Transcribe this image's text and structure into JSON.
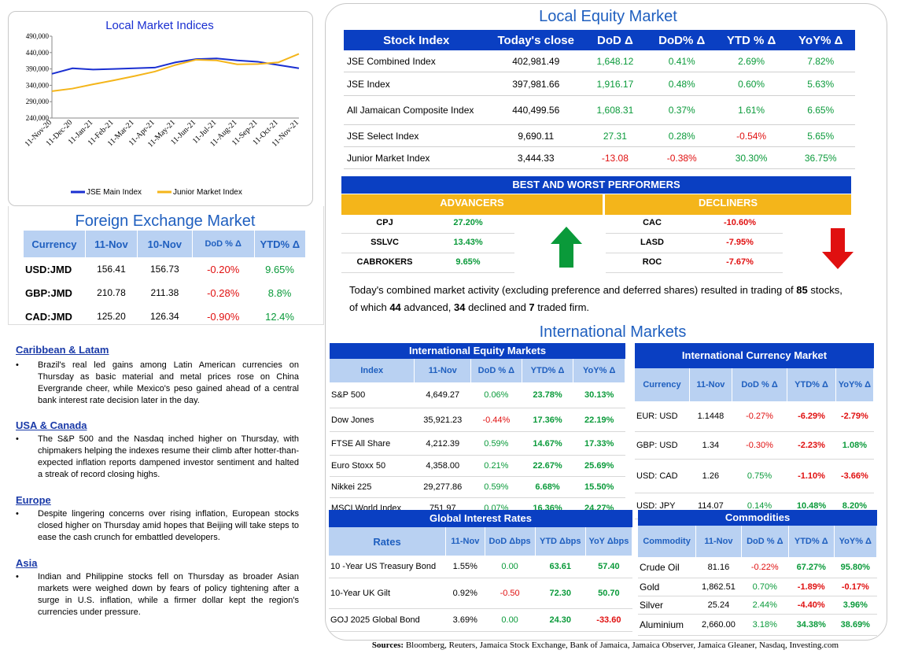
{
  "local_indices_chart": {
    "title": "Local Market Indices",
    "chart_data": {
      "type": "line",
      "title": "Local Market Indices",
      "x": [
        "11-Nov-20",
        "11-Dec-20",
        "11-Jan-21",
        "11-Feb-21",
        "11-Mar-21",
        "11-Apr-21",
        "11-May-21",
        "11-Jun-21",
        "11-Jul-21",
        "11-Aug-21",
        "11-Sep-21",
        "11-Oct-21",
        "11-Nov-21"
      ],
      "yticks": [
        "490,000",
        "440,000",
        "390,000",
        "340,000",
        "290,000",
        "240,000"
      ],
      "ylim": [
        240000,
        490000
      ],
      "series": [
        {
          "name": "JSE Main Index",
          "color": "#1a2fd1",
          "values": [
            375000,
            392000,
            388000,
            390000,
            392000,
            394000,
            410000,
            420000,
            422000,
            416000,
            412000,
            402000,
            392000
          ]
        },
        {
          "name": "Junior Market Index",
          "color": "#f4b51a",
          "values": [
            322000,
            330000,
            343000,
            355000,
            368000,
            382000,
            402000,
            418000,
            416000,
            404000,
            405000,
            410000,
            436000
          ]
        }
      ],
      "legend": "bottom"
    }
  },
  "fx": {
    "title": "Foreign Exchange Market",
    "headers": [
      "Currency",
      "11-Nov",
      "10-Nov",
      "DoD % Δ",
      "YTD% Δ"
    ],
    "rows": [
      {
        "cur": "USD:JMD",
        "a": "156.41",
        "b": "156.73",
        "dod": "-0.20%",
        "ytd": "9.65%"
      },
      {
        "cur": "GBP:JMD",
        "a": "210.78",
        "b": "211.38",
        "dod": "-0.28%",
        "ytd": "8.8%"
      },
      {
        "cur": "CAD:JMD",
        "a": "125.20",
        "b": "126.34",
        "dod": "-0.90%",
        "ytd": "12.4%"
      }
    ]
  },
  "news": [
    {
      "heading": "Caribbean & Latam",
      "body": "Brazil's real led gains among Latin American currencies on Thursday as basic material and metal prices rose on China Evergrande cheer, while Mexico's peso gained ahead of a central bank interest rate decision later in the day."
    },
    {
      "heading": "USA & Canada",
      "body": "The S&P 500 and the Nasdaq inched higher on Thursday, with chipmakers helping the indexes resume their climb after hotter-than-expected inflation reports dampened investor sentiment and halted a streak of record closing highs."
    },
    {
      "heading": "Europe",
      "body": "Despite lingering concerns over rising inflation, European stocks closed higher on Thursday amid hopes that Beijing will take steps to ease the cash crunch for embattled developers."
    },
    {
      "heading": "Asia",
      "body": "Indian and Philippine stocks fell on Thursday as broader Asian markets were weighed down by fears of policy tightening after a surge in U.S. inflation, while a firmer dollar kept the region's currencies under pressure."
    }
  ],
  "equity": {
    "title": "Local Equity Market",
    "headers": [
      "Stock Index",
      "Today's close",
      "DoD  Δ",
      "DoD% Δ",
      "YTD % Δ",
      "YoY% Δ"
    ],
    "rows": [
      {
        "name": "JSE Combined Index",
        "close": "402,981.49",
        "dod": "1,648.12",
        "dodp": "0.41%",
        "ytd": "2.69%",
        "yoy": "7.82%"
      },
      {
        "name": "JSE Index",
        "close": "397,981.66",
        "dod": "1,916.17",
        "dodp": "0.48%",
        "ytd": "0.60%",
        "yoy": "5.63%"
      },
      {
        "name": "All Jamaican Composite Index",
        "close": "440,499.56",
        "dod": "1,608.31",
        "dodp": "0.37%",
        "ytd": "1.61%",
        "yoy": "6.65%"
      },
      {
        "name": "JSE Select Index",
        "close": "9,690.11",
        "dod": "27.31",
        "dodp": "0.28%",
        "ytd": "-0.54%",
        "yoy": "5.65%"
      },
      {
        "name": "Junior Market Index",
        "close": "3,444.33",
        "dod": "-13.08",
        "dodp": "-0.38%",
        "ytd": "30.30%",
        "yoy": "36.75%"
      }
    ]
  },
  "performers": {
    "title": "BEST AND WORST PERFORMERS",
    "advancers_label": "ADVANCERS",
    "decliners_label": "DECLINERS",
    "advancers": [
      {
        "sym": "CPJ",
        "chg": "27.20%"
      },
      {
        "sym": "SSLVC",
        "chg": "13.43%"
      },
      {
        "sym": "CABROKERS",
        "chg": "9.65%"
      }
    ],
    "decliners": [
      {
        "sym": "CAC",
        "chg": "-10.60%"
      },
      {
        "sym": "LASD",
        "chg": "-7.95%"
      },
      {
        "sym": "ROC",
        "chg": "-7.67%"
      }
    ]
  },
  "summary": {
    "p1": "Today's combined market activity (excluding preference and deferred shares) resulted in trading of ",
    "traded": "85",
    "p2": " stocks, of which ",
    "advanced": "44",
    "p3": " advanced, ",
    "declined": "34",
    "p4": " declined and ",
    "firm": "7",
    "p5": " traded firm."
  },
  "intl": {
    "title": "International Markets",
    "equity": {
      "title": "International Equity Markets",
      "headers": [
        "Index",
        "11-Nov",
        "DoD % Δ",
        "YTD% Δ",
        "YoY% Δ"
      ],
      "rows": [
        {
          "name": "S&P 500",
          "v": "4,649.27",
          "dod": "0.06%",
          "ytd": "23.78%",
          "yoy": "30.13%"
        },
        {
          "name": "Dow Jones",
          "v": "35,921.23",
          "dod": "-0.44%",
          "ytd": "17.36%",
          "yoy": "22.19%"
        },
        {
          "name": "FTSE All Share",
          "v": "4,212.39",
          "dod": "0.59%",
          "ytd": "14.67%",
          "yoy": "17.33%"
        },
        {
          "name": "Euro Stoxx 50",
          "v": "4,358.00",
          "dod": "0.21%",
          "ytd": "22.67%",
          "yoy": "25.69%"
        },
        {
          "name": "Nikkei 225",
          "v": "29,277.86",
          "dod": "0.59%",
          "ytd": "6.68%",
          "yoy": "15.50%"
        },
        {
          "name": "MSCI World Index",
          "v": "751.97",
          "dod": "0.07%",
          "ytd": "16.36%",
          "yoy": "24.27%"
        }
      ]
    },
    "currency": {
      "title": "International Currency Market",
      "headers": [
        "Currency",
        "11-Nov",
        "DoD % Δ",
        "YTD% Δ",
        "YoY% Δ"
      ],
      "rows": [
        {
          "name": "EUR: USD",
          "v": "1.1448",
          "dod": "-0.27%",
          "ytd": "-6.29%",
          "yoy": "-2.79%"
        },
        {
          "name": "GBP: USD",
          "v": "1.34",
          "dod": "-0.30%",
          "ytd": "-2.23%",
          "yoy": "1.08%"
        },
        {
          "name": "USD: CAD",
          "v": "1.26",
          "dod": "0.75%",
          "ytd": "-1.10%",
          "yoy": "-3.66%"
        },
        {
          "name": "USD: JPY",
          "v": "114.07",
          "dod": "0.14%",
          "ytd": "10.48%",
          "yoy": "8.20%"
        }
      ]
    },
    "rates": {
      "title": "Global Interest Rates",
      "headers": [
        "Rates",
        "11-Nov",
        "DoD Δbps",
        "YTD Δbps",
        "YoY Δbps"
      ],
      "rows": [
        {
          "name": "10 -Year US Treasury Bond",
          "v": "1.55%",
          "dod": "0.00",
          "ytd": "63.61",
          "yoy": "57.40"
        },
        {
          "name": "10-Year UK Gilt",
          "v": "0.92%",
          "dod": "-0.50",
          "ytd": "72.30",
          "yoy": "50.70"
        },
        {
          "name": "GOJ 2025 Global Bond",
          "v": "3.69%",
          "dod": "0.00",
          "ytd": "24.30",
          "yoy": "-33.60"
        }
      ]
    },
    "commodities": {
      "title": "Commodities",
      "headers": [
        "Commodity",
        "11-Nov",
        "DoD % Δ",
        "YTD% Δ",
        "YoY% Δ"
      ],
      "rows": [
        {
          "name": "Crude Oil",
          "v": "81.16",
          "dod": "-0.22%",
          "ytd": "67.27%",
          "yoy": "95.80%"
        },
        {
          "name": "Gold",
          "v": "1,862.51",
          "dod": "0.70%",
          "ytd": "-1.89%",
          "yoy": "-0.17%"
        },
        {
          "name": "Silver",
          "v": "25.24",
          "dod": "2.44%",
          "ytd": "-4.40%",
          "yoy": "3.96%"
        },
        {
          "name": "Aluminium",
          "v": "2,660.00",
          "dod": "3.18%",
          "ytd": "34.38%",
          "yoy": "38.69%"
        }
      ]
    }
  },
  "sources": {
    "label": "Sources:",
    "text": " Bloomberg, Reuters, Jamaica Stock Exchange, Bank of Jamaica, Jamaica Observer, Jamaica Gleaner, Nasdaq, Investing.com"
  },
  "colors": {
    "positive": "#0a9a3a",
    "negative": "#e01010",
    "header": "#0a3fc2",
    "accent": "#f4b51a"
  }
}
